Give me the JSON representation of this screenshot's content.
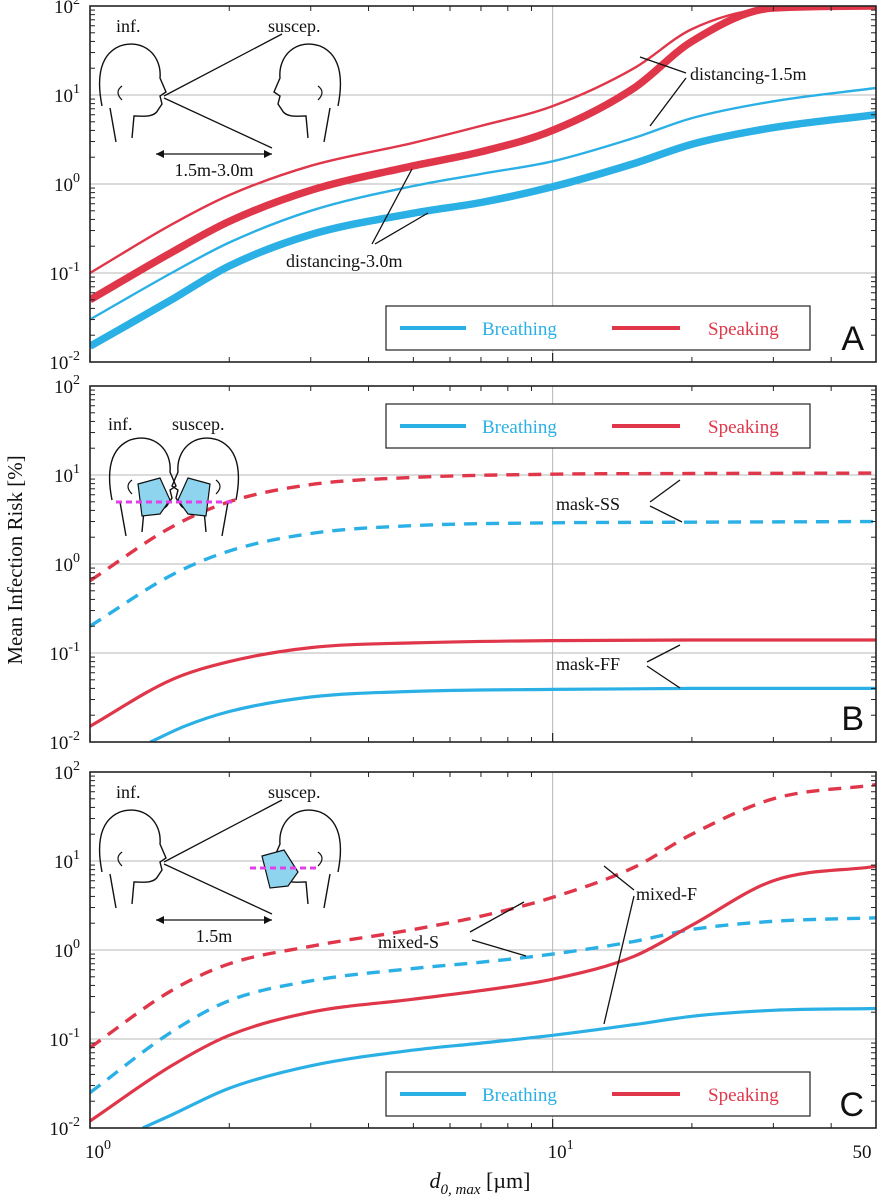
{
  "figure": {
    "ylabel": "Mean Infection Risk  [%]",
    "xlabel": "d0, max [µm]",
    "xlabel_main": "d",
    "xlabel_sub": "0, max",
    "xlabel_unit": " [µm]",
    "colors": {
      "breathing": "#2bb0e6",
      "speaking": "#e0364a"
    },
    "legend": {
      "breathing": "Breathing",
      "speaking": "Speaking"
    },
    "x_tick_labels": {
      "left": "10",
      "left_exp": "0",
      "mid": "10",
      "mid_exp": "1",
      "right": "50"
    },
    "y_tick_labels": [
      {
        "base": "10",
        "exp": "2"
      },
      {
        "base": "10",
        "exp": "1"
      },
      {
        "base": "10",
        "exp": "0"
      },
      {
        "base": "10",
        "exp": "-1"
      },
      {
        "base": "10",
        "exp": "-2"
      }
    ],
    "panels": [
      {
        "letter": "A",
        "illustration": {
          "inf_label": "inf.",
          "suscep_label": "suscep.",
          "distance_label": "1.5m-3.0m",
          "masked_susceptible": false
        },
        "annotations": [
          "distancing-1.5m",
          "distancing-3.0m"
        ]
      },
      {
        "letter": "B",
        "illustration": {
          "inf_label": "inf.",
          "suscep_label": "suscep."
        },
        "annotations": [
          "mask-SS",
          "mask-FF"
        ]
      },
      {
        "letter": "C",
        "illustration": {
          "inf_label": "inf.",
          "suscep_label": "suscep.",
          "distance_label": "1.5m",
          "masked_susceptible": true
        },
        "annotations": [
          "mixed-S",
          "mixed-F"
        ]
      }
    ]
  },
  "chart_data": [
    {
      "panel": "A",
      "type": "line",
      "xscale": "log",
      "yscale": "log",
      "xlim": [
        1,
        50
      ],
      "ylim": [
        0.01,
        100
      ],
      "legend_position": "bottom-right",
      "grid": true,
      "series": [
        {
          "name": "distancing-1.5m",
          "activity": "Speaking",
          "style": "solid-thin",
          "x": [
            1,
            1.5,
            2,
            3,
            5,
            7,
            10,
            15,
            20,
            30,
            50
          ],
          "y": [
            0.1,
            0.35,
            0.75,
            1.6,
            2.9,
            4.5,
            7.5,
            20,
            55,
            95,
            100
          ]
        },
        {
          "name": "distancing-3.0m",
          "activity": "Speaking",
          "style": "solid-thick",
          "x": [
            1,
            1.5,
            2,
            3,
            5,
            7,
            10,
            15,
            20,
            30,
            50
          ],
          "y": [
            0.05,
            0.17,
            0.38,
            0.85,
            1.6,
            2.3,
            4.0,
            12,
            40,
            95,
            100
          ]
        },
        {
          "name": "distancing-1.5m",
          "activity": "Breathing",
          "style": "solid-thin",
          "x": [
            1,
            1.5,
            2,
            3,
            5,
            7,
            10,
            15,
            20,
            30,
            50
          ],
          "y": [
            0.03,
            0.1,
            0.22,
            0.5,
            0.95,
            1.3,
            1.8,
            3.3,
            5.5,
            8.5,
            12
          ]
        },
        {
          "name": "distancing-3.0m",
          "activity": "Breathing",
          "style": "solid-thick",
          "x": [
            1,
            1.5,
            2,
            3,
            5,
            7,
            10,
            15,
            20,
            30,
            50
          ],
          "y": [
            0.015,
            0.05,
            0.12,
            0.27,
            0.47,
            0.62,
            0.93,
            1.7,
            2.8,
            4.3,
            6
          ]
        }
      ]
    },
    {
      "panel": "B",
      "type": "line",
      "xscale": "log",
      "yscale": "log",
      "xlim": [
        1,
        50
      ],
      "ylim": [
        0.01,
        100
      ],
      "legend_position": "top-right",
      "grid": true,
      "series": [
        {
          "name": "mask-SS",
          "activity": "Speaking",
          "style": "dashed",
          "x": [
            1,
            1.5,
            2,
            3,
            5,
            10,
            20,
            50
          ],
          "y": [
            0.65,
            2.6,
            5.0,
            7.8,
            9.4,
            10.2,
            10.4,
            10.5
          ]
        },
        {
          "name": "mask-SS",
          "activity": "Breathing",
          "style": "dashed",
          "x": [
            1,
            1.5,
            2,
            3,
            5,
            10,
            20,
            50
          ],
          "y": [
            0.2,
            0.75,
            1.4,
            2.2,
            2.7,
            2.9,
            2.95,
            3.0
          ]
        },
        {
          "name": "mask-FF",
          "activity": "Speaking",
          "style": "solid",
          "x": [
            1,
            1.5,
            2,
            3,
            5,
            10,
            20,
            50
          ],
          "y": [
            0.015,
            0.05,
            0.08,
            0.115,
            0.13,
            0.138,
            0.14,
            0.14
          ]
        },
        {
          "name": "mask-FF",
          "activity": "Breathing",
          "style": "solid",
          "x": [
            1.35,
            1.6,
            2,
            3,
            5,
            10,
            20,
            50
          ],
          "y": [
            0.01,
            0.015,
            0.022,
            0.032,
            0.037,
            0.039,
            0.04,
            0.04
          ]
        }
      ]
    },
    {
      "panel": "C",
      "type": "line",
      "xscale": "log",
      "yscale": "log",
      "xlim": [
        1,
        50
      ],
      "ylim": [
        0.01,
        100
      ],
      "legend_position": "bottom-right",
      "grid": true,
      "series": [
        {
          "name": "mixed-S",
          "activity": "Speaking",
          "style": "dashed",
          "x": [
            1,
            1.5,
            2,
            3,
            5,
            7,
            10,
            15,
            20,
            30,
            50
          ],
          "y": [
            0.08,
            0.35,
            0.7,
            1.1,
            1.7,
            2.4,
            3.9,
            8.5,
            20,
            50,
            72
          ]
        },
        {
          "name": "mixed-S",
          "activity": "Breathing",
          "style": "dashed",
          "x": [
            1,
            1.5,
            2,
            3,
            5,
            7,
            10,
            15,
            20,
            30,
            50
          ],
          "y": [
            0.025,
            0.12,
            0.27,
            0.45,
            0.62,
            0.73,
            0.9,
            1.25,
            1.7,
            2.1,
            2.3
          ]
        },
        {
          "name": "mixed-F",
          "activity": "Speaking",
          "style": "solid",
          "x": [
            1,
            1.5,
            2,
            3,
            5,
            7,
            10,
            15,
            20,
            30,
            50
          ],
          "y": [
            0.012,
            0.05,
            0.11,
            0.2,
            0.28,
            0.35,
            0.47,
            0.85,
            1.9,
            6.0,
            8.7
          ]
        },
        {
          "name": "mixed-F",
          "activity": "Breathing",
          "style": "solid",
          "x": [
            1.3,
            1.5,
            2,
            3,
            5,
            7,
            10,
            15,
            20,
            30,
            50
          ],
          "y": [
            0.01,
            0.014,
            0.028,
            0.05,
            0.075,
            0.09,
            0.11,
            0.145,
            0.18,
            0.21,
            0.22
          ]
        }
      ]
    }
  ]
}
